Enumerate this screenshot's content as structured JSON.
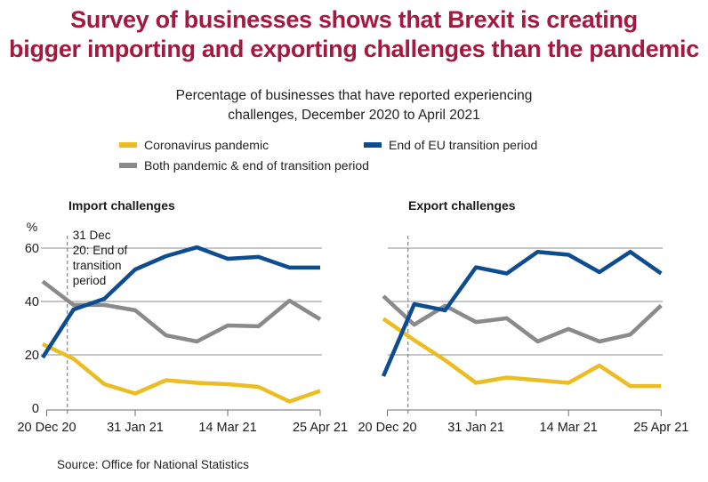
{
  "title_lines": [
    "Survey of businesses shows that Brexit is creating",
    "bigger importing and exporting challenges than the pandemic"
  ],
  "subtitle_lines": [
    "Percentage of businesses that have reported experiencing",
    "challenges, December 2020 to April 2021"
  ],
  "legend": [
    {
      "label": "Coronavirus pandemic",
      "color": "#ECBD22"
    },
    {
      "label": "End of EU transition period",
      "color": "#0E4C92"
    },
    {
      "label": "Both pandemic & end of transition period",
      "color": "#8A8A8C"
    }
  ],
  "source": "Source: Office for National Statistics",
  "chart_data": [
    {
      "type": "line",
      "title": "Import challenges",
      "ylabel": "%",
      "ylim": [
        0,
        60
      ],
      "yticks": [
        0,
        20,
        40,
        60
      ],
      "grid": true,
      "xtick_labels": [
        "20 Dec 20",
        "31 Jan 21",
        "14 Mar 21",
        "25 Apr 21"
      ],
      "xtick_positions": [
        0.13,
        3.0,
        6.0,
        9.0
      ],
      "x": [
        0,
        1,
        2,
        3,
        4,
        5,
        6,
        7,
        8,
        9
      ],
      "annotation": {
        "text_lines": [
          "31 Dec",
          "20: End of",
          "transition",
          "period"
        ],
        "x": 0.8
      },
      "series": [
        {
          "name": "Coronavirus pandemic",
          "color": "#ECBD22",
          "values": [
            24,
            18.5,
            9,
            5.5,
            10.5,
            9.5,
            9,
            8,
            2.5,
            6.5
          ]
        },
        {
          "name": "End of EU transition period",
          "color": "#0E4C92",
          "values": [
            19,
            37,
            41,
            52,
            57,
            60.3,
            56,
            56.7,
            52.7,
            52.7
          ]
        },
        {
          "name": "Both pandemic & end of transition period",
          "color": "#8A8A8C",
          "values": [
            47.5,
            38.7,
            38.7,
            36.7,
            27.3,
            25,
            31,
            30.7,
            40.3,
            33.3
          ]
        }
      ]
    },
    {
      "type": "line",
      "title": "Export challenges",
      "ylabel": "",
      "ylim": [
        0,
        60
      ],
      "yticks": [
        0,
        20,
        40,
        60
      ],
      "grid": true,
      "xtick_labels": [
        "20 Dec 20",
        "31 Jan 21",
        "14 Mar 21",
        "25 Apr 21"
      ],
      "xtick_positions": [
        0.13,
        3.0,
        6.0,
        9.0
      ],
      "x": [
        0,
        1,
        2,
        3,
        4,
        5,
        6,
        7,
        8,
        9
      ],
      "annotation": {
        "text_lines": [],
        "x": 0.8
      },
      "series": [
        {
          "name": "Coronavirus pandemic",
          "color": "#ECBD22",
          "values": [
            33.5,
            25.5,
            18,
            9.5,
            11.5,
            10.5,
            9.5,
            16,
            8.3,
            8.3
          ]
        },
        {
          "name": "End of EU transition period",
          "color": "#0E4C92",
          "values": [
            12,
            39,
            36.7,
            52.8,
            50.5,
            58.6,
            57.5,
            51,
            58.6,
            50.5
          ]
        },
        {
          "name": "Both pandemic & end of transition period",
          "color": "#8A8A8C",
          "values": [
            42,
            31.3,
            38.4,
            32.3,
            33.7,
            25,
            29.7,
            25,
            27.6,
            38.5
          ]
        }
      ]
    }
  ]
}
